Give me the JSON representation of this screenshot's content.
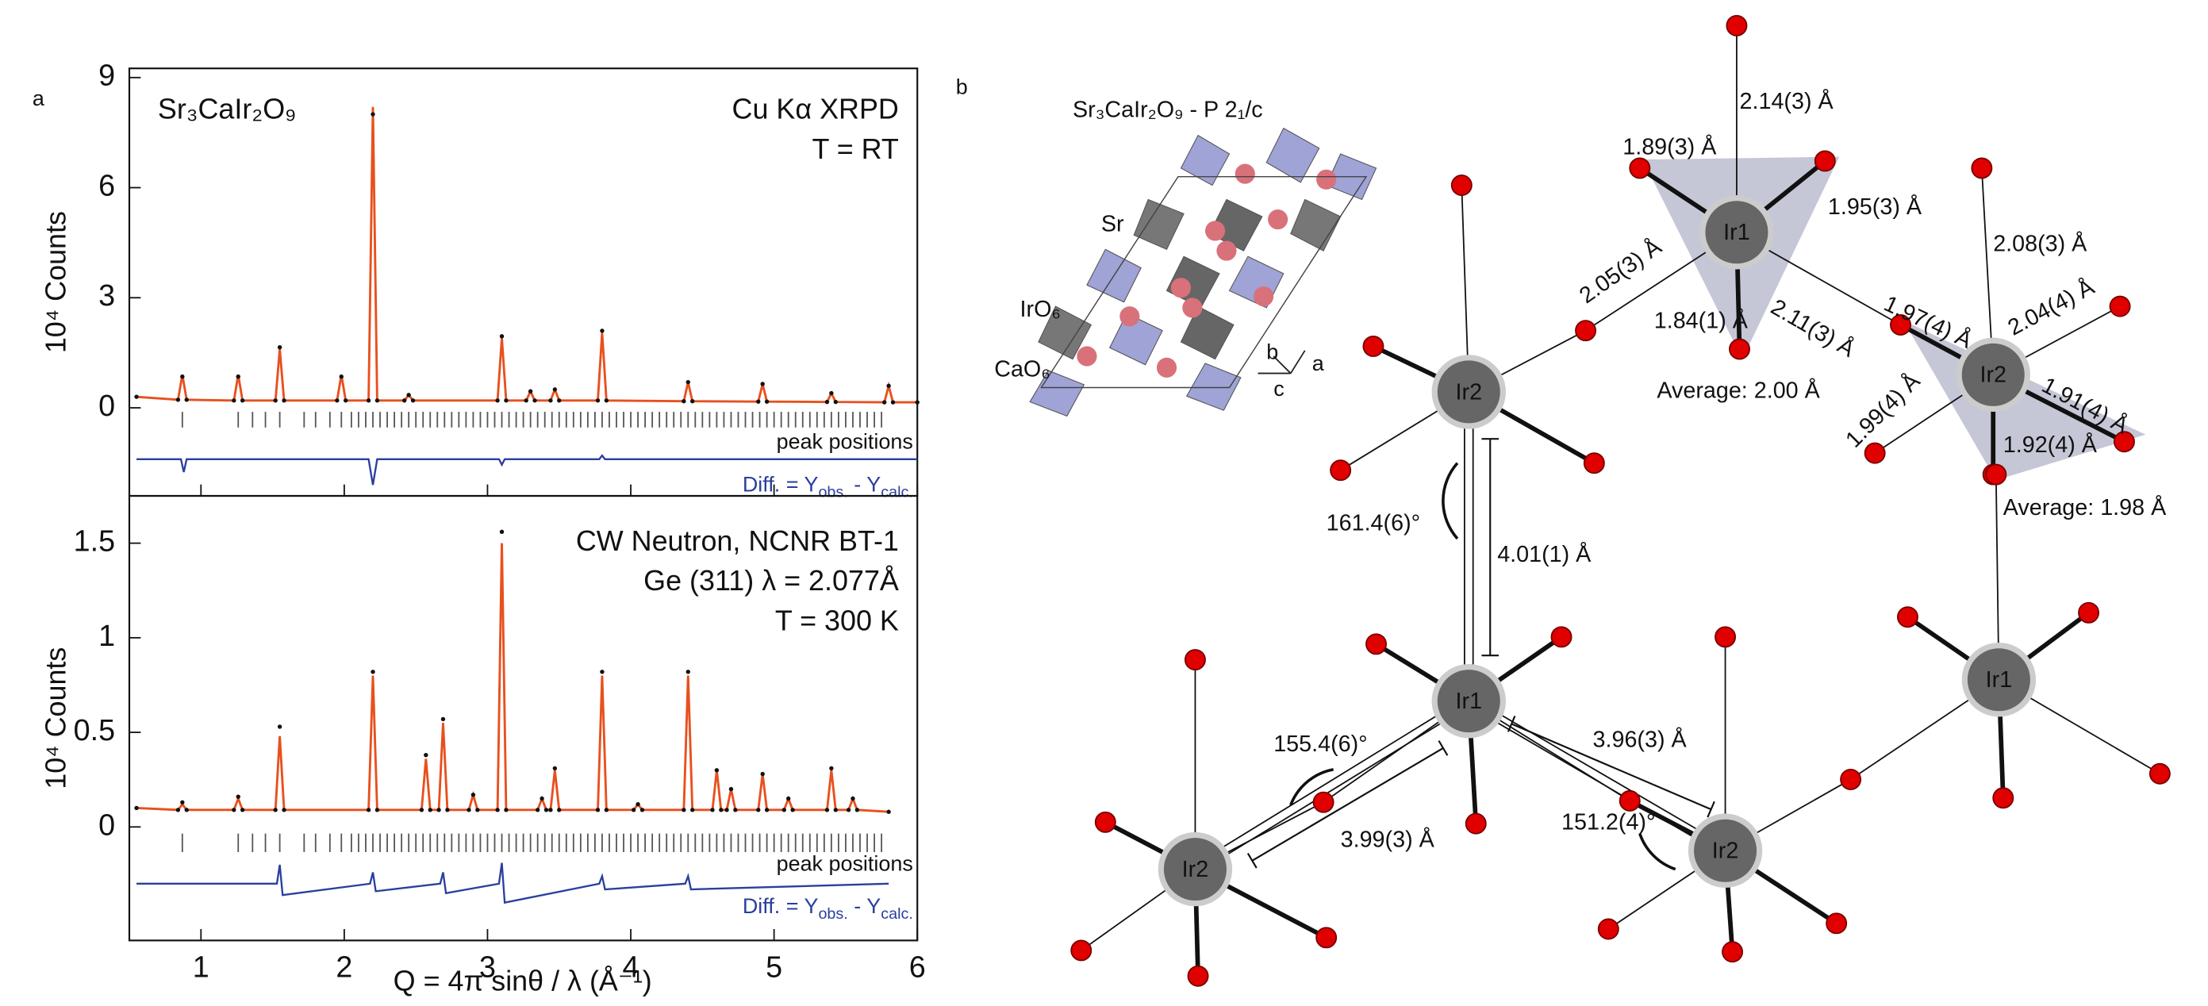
{
  "chart_data": [
    {
      "type": "line",
      "panel": "a",
      "title": "Sr₃CaIr₂O₉",
      "annotations": [
        "Cu Kα XRPD",
        "T = RT"
      ],
      "ylabel": "10⁴ Counts",
      "x": [
        0.55,
        0.84,
        0.87,
        0.9,
        1.23,
        1.26,
        1.29,
        1.52,
        1.55,
        1.58,
        1.95,
        1.98,
        2.01,
        2.17,
        2.2,
        2.23,
        2.42,
        2.45,
        2.48,
        3.07,
        3.1,
        3.13,
        3.27,
        3.3,
        3.33,
        3.44,
        3.47,
        3.5,
        3.77,
        3.8,
        3.83,
        4.37,
        4.4,
        4.43,
        4.89,
        4.92,
        4.95,
        5.37,
        5.4,
        5.43,
        5.77,
        5.8,
        5.83,
        6.0
      ],
      "series": [
        {
          "marker": "line",
          "color": "#e8501e",
          "values": [
            0.3,
            0.22,
            0.9,
            0.22,
            0.2,
            0.9,
            0.2,
            0.2,
            1.6,
            0.2,
            0.2,
            0.9,
            0.2,
            0.2,
            8.2,
            0.2,
            0.2,
            0.35,
            0.2,
            0.2,
            1.9,
            0.2,
            0.2,
            0.45,
            0.2,
            0.2,
            0.5,
            0.2,
            0.2,
            2.05,
            0.2,
            0.18,
            0.7,
            0.18,
            0.17,
            0.65,
            0.17,
            0.16,
            0.4,
            0.16,
            0.15,
            0.6,
            0.15,
            0.15
          ]
        },
        {
          "marker": "dot",
          "color": "#111111",
          "values": [
            0.3,
            0.22,
            0.85,
            0.22,
            0.2,
            0.85,
            0.2,
            0.2,
            1.65,
            0.2,
            0.2,
            0.85,
            0.2,
            0.2,
            8.0,
            0.2,
            0.2,
            0.35,
            0.2,
            0.2,
            1.95,
            0.2,
            0.2,
            0.45,
            0.2,
            0.2,
            0.5,
            0.2,
            0.2,
            2.1,
            0.2,
            0.18,
            0.7,
            0.18,
            0.17,
            0.65,
            0.17,
            0.16,
            0.4,
            0.16,
            0.15,
            0.6,
            0.15,
            0.15
          ]
        }
      ],
      "diff": {
        "color": "#2a3f9e",
        "label_parts": [
          "Diff. = Y",
          "obs.",
          " - Y",
          "calc."
        ],
        "x": [
          0.55,
          0.86,
          0.88,
          0.9,
          2.17,
          2.2,
          2.23,
          3.08,
          3.1,
          3.12,
          3.78,
          3.8,
          3.82,
          6.0
        ],
        "values": [
          -1.4,
          -1.4,
          -1.75,
          -1.4,
          -1.4,
          -2.1,
          -1.4,
          -1.4,
          -1.55,
          -1.4,
          -1.4,
          -1.3,
          -1.4,
          -1.4
        ]
      },
      "peak_positions": {
        "label": "peak positions",
        "x": [
          0.87,
          1.26,
          1.36,
          1.45,
          1.55,
          1.72,
          1.8,
          1.9,
          1.98,
          2.05,
          2.1,
          2.15,
          2.2,
          2.25,
          2.3,
          2.35,
          2.4,
          2.45,
          2.5,
          2.55,
          2.6,
          2.65,
          2.7,
          2.75,
          2.8,
          2.85,
          2.9,
          2.95,
          3.0,
          3.05,
          3.1,
          3.15,
          3.2,
          3.25,
          3.3,
          3.35,
          3.4,
          3.45,
          3.5,
          3.55,
          3.6,
          3.65,
          3.7,
          3.75,
          3.8,
          3.85,
          3.9,
          3.95,
          4.0,
          4.05,
          4.1,
          4.15,
          4.2,
          4.25,
          4.3,
          4.35,
          4.4,
          4.45,
          4.5,
          4.55,
          4.6,
          4.65,
          4.7,
          4.75,
          4.8,
          4.85,
          4.9,
          4.95,
          5.0,
          5.05,
          5.1,
          5.15,
          5.2,
          5.25,
          5.3,
          5.35,
          5.4,
          5.45,
          5.5,
          5.55,
          5.6,
          5.65,
          5.7,
          5.75
        ]
      },
      "xlim": [
        0.5,
        6
      ],
      "xticks": [
        1,
        2,
        3,
        4,
        5,
        6
      ],
      "xtick_labels": false,
      "ylim": [
        -2.4,
        9.25
      ],
      "yticks": [
        0,
        3,
        6,
        9
      ]
    },
    {
      "type": "line",
      "annotations": [
        "CW Neutron, NCNR BT-1",
        "Ge (311) λ = 2.077Å",
        "T = 300 K"
      ],
      "ylabel": "10⁴ Counts",
      "xlabel": "Q = 4π sinθ / λ (Å⁻¹)",
      "x": [
        0.55,
        0.84,
        0.87,
        0.9,
        1.23,
        1.26,
        1.29,
        1.52,
        1.55,
        1.58,
        2.17,
        2.2,
        2.23,
        2.54,
        2.57,
        2.6,
        2.66,
        2.69,
        2.72,
        2.87,
        2.9,
        2.93,
        3.07,
        3.1,
        3.13,
        3.35,
        3.38,
        3.41,
        3.44,
        3.47,
        3.5,
        3.77,
        3.8,
        3.83,
        4.02,
        4.05,
        4.08,
        4.37,
        4.4,
        4.43,
        4.57,
        4.6,
        4.63,
        4.67,
        4.7,
        4.73,
        4.89,
        4.92,
        4.95,
        5.07,
        5.1,
        5.13,
        5.37,
        5.4,
        5.43,
        5.52,
        5.55,
        5.58,
        5.8
      ],
      "series": [
        {
          "marker": "line",
          "color": "#e8501e",
          "values": [
            0.1,
            0.09,
            0.12,
            0.09,
            0.09,
            0.15,
            0.09,
            0.09,
            0.48,
            0.09,
            0.09,
            0.8,
            0.09,
            0.09,
            0.36,
            0.09,
            0.09,
            0.55,
            0.09,
            0.09,
            0.17,
            0.09,
            0.09,
            1.5,
            0.09,
            0.09,
            0.15,
            0.09,
            0.09,
            0.3,
            0.09,
            0.09,
            0.8,
            0.09,
            0.09,
            0.12,
            0.09,
            0.09,
            0.8,
            0.09,
            0.09,
            0.3,
            0.09,
            0.09,
            0.2,
            0.09,
            0.09,
            0.28,
            0.09,
            0.09,
            0.15,
            0.09,
            0.09,
            0.3,
            0.09,
            0.09,
            0.15,
            0.09,
            0.08
          ]
        },
        {
          "marker": "dot",
          "color": "#111111",
          "values": [
            0.1,
            0.09,
            0.13,
            0.09,
            0.09,
            0.16,
            0.09,
            0.09,
            0.53,
            0.09,
            0.09,
            0.82,
            0.09,
            0.09,
            0.38,
            0.09,
            0.09,
            0.57,
            0.09,
            0.09,
            0.17,
            0.09,
            0.09,
            1.56,
            0.09,
            0.09,
            0.15,
            0.09,
            0.09,
            0.31,
            0.09,
            0.09,
            0.82,
            0.09,
            0.09,
            0.12,
            0.09,
            0.09,
            0.82,
            0.09,
            0.09,
            0.3,
            0.09,
            0.09,
            0.2,
            0.09,
            0.09,
            0.28,
            0.09,
            0.09,
            0.15,
            0.09,
            0.09,
            0.31,
            0.09,
            0.09,
            0.15,
            0.09,
            0.08
          ]
        }
      ],
      "diff": {
        "color": "#2a3f9e",
        "label_parts": [
          "Diff. = Y",
          "obs.",
          " - Y",
          "calc."
        ],
        "x": [
          0.55,
          1.53,
          1.55,
          1.57,
          2.18,
          2.2,
          2.22,
          2.67,
          2.69,
          2.71,
          3.08,
          3.1,
          3.12,
          3.78,
          3.8,
          3.82,
          4.38,
          4.4,
          4.42,
          5.8
        ],
        "values": [
          -0.3,
          -0.3,
          -0.2,
          -0.36,
          -0.3,
          -0.24,
          -0.34,
          -0.3,
          -0.24,
          -0.35,
          -0.3,
          -0.19,
          -0.4,
          -0.3,
          -0.26,
          -0.33,
          -0.3,
          -0.26,
          -0.33,
          -0.3
        ]
      },
      "peak_positions": {
        "label": "peak positions",
        "x": [
          0.87,
          1.26,
          1.36,
          1.45,
          1.55,
          1.72,
          1.8,
          1.9,
          1.98,
          2.05,
          2.1,
          2.15,
          2.2,
          2.25,
          2.3,
          2.35,
          2.4,
          2.45,
          2.5,
          2.55,
          2.6,
          2.65,
          2.7,
          2.75,
          2.8,
          2.85,
          2.9,
          2.95,
          3.0,
          3.05,
          3.1,
          3.15,
          3.2,
          3.25,
          3.3,
          3.35,
          3.4,
          3.45,
          3.5,
          3.55,
          3.6,
          3.65,
          3.7,
          3.75,
          3.8,
          3.85,
          3.9,
          3.95,
          4.0,
          4.05,
          4.1,
          4.15,
          4.2,
          4.25,
          4.3,
          4.35,
          4.4,
          4.45,
          4.5,
          4.55,
          4.6,
          4.65,
          4.7,
          4.75,
          4.8,
          4.85,
          4.9,
          4.95,
          5.0,
          5.05,
          5.1,
          5.15,
          5.2,
          5.25,
          5.3,
          5.35,
          5.4,
          5.45,
          5.5,
          5.55,
          5.6,
          5.65,
          5.7,
          5.75
        ]
      },
      "xlim": [
        0.5,
        6
      ],
      "xticks": [
        1,
        2,
        3,
        4,
        5,
        6
      ],
      "xtick_labels": true,
      "ylim": [
        -0.6,
        1.75
      ],
      "yticks": [
        0,
        0.5,
        1,
        1.5
      ]
    }
  ],
  "diagram": {
    "panel": "b",
    "structure": {
      "title": "Sr₃CaIr₂O₉ - P 2₁/c",
      "labels": [
        "Sr",
        "IrO₆",
        "CaO₆"
      ],
      "axes": [
        "b",
        "a",
        "c"
      ]
    },
    "nodes": [
      {
        "label": "Ir1"
      },
      {
        "label": "Ir2"
      },
      {
        "label": "Ir2"
      },
      {
        "label": "Ir1"
      },
      {
        "label": "Ir1"
      },
      {
        "label": "Ir2"
      },
      {
        "label": "Ir2"
      }
    ],
    "labels": [
      "2.14(3) Å",
      "1.89(3) Å",
      "1.95(3) Å",
      "2.05(3) Å",
      "1.84(1) Å",
      "2.11(3) Å",
      "Average: 2.00 Å",
      "2.08(3) Å",
      "1.97(4) Å",
      "2.04(4) Å",
      "1.91(4) Å",
      "1.99(4) Å",
      "1.92(4) Å",
      "Average: 1.98 Å",
      "161.4(6)°",
      "4.01(1) Å",
      "155.4(6)°",
      "3.96(3) Å",
      "3.99(3) Å",
      "151.2(4)°"
    ]
  }
}
